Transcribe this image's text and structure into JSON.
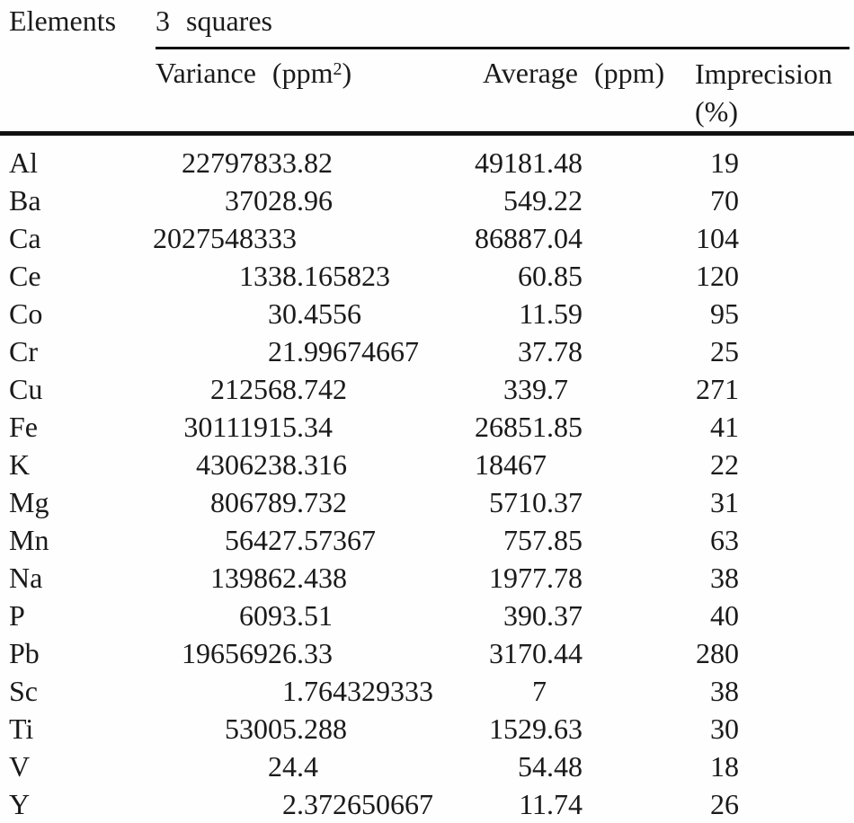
{
  "table": {
    "elements_header": "Elements",
    "group_header": "3 squares",
    "subheaders": {
      "variance_main": "Variance (ppm",
      "variance_sup": "2",
      "variance_close": ")",
      "average": "Average (ppm)",
      "imprecision_line1": "Imprecision",
      "imprecision_line2": "(%)"
    },
    "rows": [
      {
        "element": "Al",
        "variance": "22797833.82",
        "average": "49181.48",
        "imprecision": "19"
      },
      {
        "element": "Ba",
        "variance": "37028.96",
        "average": "549.22",
        "imprecision": "70"
      },
      {
        "element": "Ca",
        "variance": "2027548333",
        "average": "86887.04",
        "imprecision": "104"
      },
      {
        "element": "Ce",
        "variance": "1338.165823",
        "average": "60.85",
        "imprecision": "120"
      },
      {
        "element": "Co",
        "variance": "30.4556",
        "average": "11.59",
        "imprecision": "95"
      },
      {
        "element": "Cr",
        "variance": "21.99674667",
        "average": "37.78",
        "imprecision": "25"
      },
      {
        "element": "Cu",
        "variance": "212568.742",
        "average": "339.7",
        "imprecision": "271"
      },
      {
        "element": "Fe",
        "variance": "30111915.34",
        "average": "26851.85",
        "imprecision": "41"
      },
      {
        "element": "K",
        "variance": "4306238.316",
        "average": "18467",
        "imprecision": "22"
      },
      {
        "element": "Mg",
        "variance": "806789.732",
        "average": "5710.37",
        "imprecision": "31"
      },
      {
        "element": "Mn",
        "variance": "56427.57367",
        "average": "757.85",
        "imprecision": "63"
      },
      {
        "element": "Na",
        "variance": "139862.438",
        "average": "1977.78",
        "imprecision": "38"
      },
      {
        "element": "P",
        "variance": "6093.51",
        "average": "390.37",
        "imprecision": "40"
      },
      {
        "element": "Pb",
        "variance": "19656926.33",
        "average": "3170.44",
        "imprecision": "280"
      },
      {
        "element": "Sc",
        "variance": "1.764329333",
        "average": "7",
        "imprecision": "38"
      },
      {
        "element": "Ti",
        "variance": "53005.288",
        "average": "1529.63",
        "imprecision": "30"
      },
      {
        "element": "V",
        "variance": "24.4",
        "average": "54.48",
        "imprecision": "18"
      },
      {
        "element": "Y",
        "variance": "2.372650667",
        "average": "11.74",
        "imprecision": "26"
      }
    ]
  }
}
